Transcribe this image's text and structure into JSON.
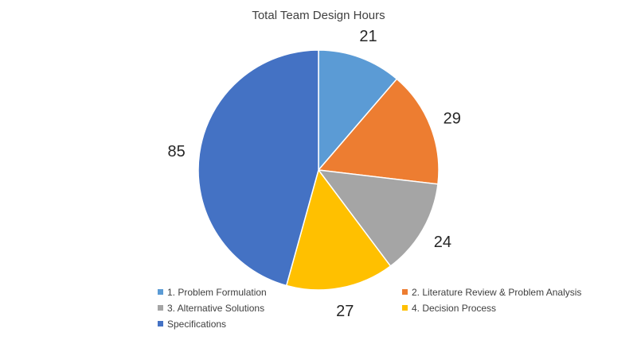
{
  "chart_data": {
    "type": "pie",
    "title": "Total Team Design Hours",
    "categories": [
      "1. Problem Formulation",
      "2. Literature Review & Problem Analysis",
      "3. Alternative Solutions",
      "4. Decision Process",
      "Specifications"
    ],
    "values": [
      21,
      29,
      24,
      27,
      85
    ],
    "colors": [
      "#5B9BD5",
      "#ED7D31",
      "#A5A5A5",
      "#FFC000",
      "#4472C4"
    ],
    "data_labels": [
      "21",
      "29",
      "24",
      "27",
      "85"
    ],
    "legend_position": "bottom",
    "start_angle": "12 o'clock, clockwise"
  }
}
